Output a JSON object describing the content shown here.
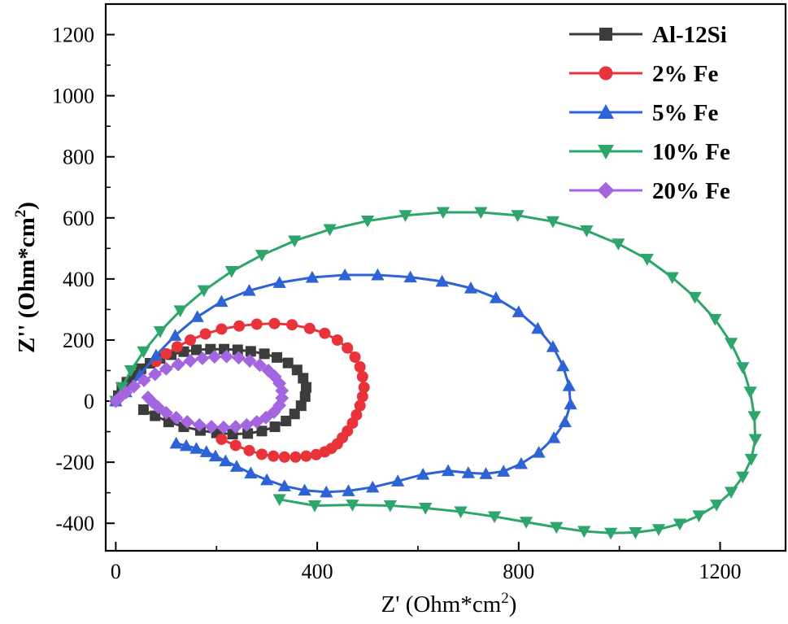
{
  "chart_data": {
    "type": "scatter",
    "title": "",
    "xlabel": "Z' (Ohm*cm",
    "xlabel_sup": "2",
    "xlabel_close": ")",
    "ylabel": "Z'' (Ohm*cm",
    "ylabel_sup": "2",
    "ylabel_close": ")",
    "xlim": [
      -20,
      1330
    ],
    "ylim": [
      -490,
      1300
    ],
    "xticks": [
      0,
      400,
      800,
      1200
    ],
    "yticks": [
      -400,
      -200,
      0,
      200,
      400,
      600,
      800,
      1000,
      1200
    ],
    "legend_position": "top-right",
    "series": [
      {
        "name": "Al-12Si",
        "color": "#3c3c3c",
        "marker": "square",
        "x": [
          0,
          5,
          12,
          22,
          35,
          50,
          68,
          88,
          110,
          135,
          160,
          188,
          215,
          242,
          268,
          295,
          320,
          342,
          360,
          372,
          378,
          376,
          368,
          355,
          338,
          316,
          290,
          262,
          232,
          200,
          168,
          135,
          105,
          78,
          55
        ],
        "y": [
          0,
          18,
          40,
          62,
          85,
          106,
          124,
          140,
          152,
          162,
          168,
          170,
          170,
          168,
          163,
          155,
          143,
          125,
          102,
          75,
          45,
          15,
          -15,
          -42,
          -65,
          -84,
          -98,
          -106,
          -108,
          -104,
          -96,
          -84,
          -68,
          -48,
          -28
        ]
      },
      {
        "name": "2% Fe",
        "color": "#e8333b",
        "marker": "circle",
        "x": [
          80,
          100,
          122,
          148,
          178,
          210,
          245,
          280,
          315,
          350,
          385,
          415,
          440,
          460,
          475,
          485,
          490,
          493,
          490,
          485,
          478,
          470,
          460,
          450,
          440,
          428,
          415,
          398,
          378,
          357,
          335,
          313,
          290,
          265,
          238,
          210
        ],
        "y": [
          130,
          155,
          178,
          200,
          220,
          236,
          246,
          252,
          254,
          250,
          238,
          222,
          200,
          174,
          144,
          112,
          80,
          45,
          15,
          -15,
          -45,
          -72,
          -98,
          -120,
          -140,
          -155,
          -166,
          -175,
          -180,
          -183,
          -183,
          -180,
          -174,
          -162,
          -145,
          -125
        ]
      },
      {
        "name": "5% Fe",
        "color": "#2e63d6",
        "marker": "triangle-up",
        "x": [
          0,
          20,
          48,
          80,
          118,
          162,
          210,
          265,
          325,
          390,
          455,
          520,
          585,
          648,
          705,
          755,
          800,
          838,
          868,
          888,
          900,
          903,
          892,
          870,
          840,
          805,
          770,
          735,
          700,
          660,
          610,
          560,
          510,
          462,
          418,
          375,
          335,
          300,
          268,
          240,
          218,
          198,
          180,
          160,
          140,
          120
        ],
        "y": [
          0,
          30,
          85,
          150,
          215,
          276,
          326,
          362,
          388,
          405,
          413,
          413,
          406,
          392,
          370,
          338,
          292,
          238,
          178,
          115,
          50,
          -10,
          -68,
          -120,
          -168,
          -205,
          -230,
          -238,
          -235,
          -228,
          -240,
          -262,
          -282,
          -294,
          -298,
          -292,
          -278,
          -258,
          -236,
          -214,
          -196,
          -180,
          -166,
          -155,
          -146,
          -138
        ]
      },
      {
        "name": "10% Fe",
        "color": "#2ea66b",
        "marker": "triangle-down",
        "x": [
          0,
          12,
          30,
          55,
          88,
          128,
          175,
          230,
          290,
          355,
          425,
          500,
          575,
          650,
          725,
          798,
          868,
          935,
          998,
          1055,
          1105,
          1150,
          1190,
          1222,
          1245,
          1260,
          1268,
          1270,
          1262,
          1245,
          1222,
          1193,
          1158,
          1120,
          1078,
          1032,
          983,
          930,
          875,
          815,
          752,
          685,
          615,
          545,
          470,
          395,
          325
        ],
        "y": [
          0,
          45,
          100,
          162,
          228,
          296,
          362,
          425,
          478,
          525,
          562,
          590,
          608,
          618,
          618,
          608,
          588,
          558,
          515,
          465,
          405,
          340,
          268,
          190,
          110,
          30,
          -50,
          -125,
          -190,
          -248,
          -298,
          -340,
          -375,
          -402,
          -420,
          -430,
          -432,
          -426,
          -413,
          -396,
          -378,
          -362,
          -350,
          -342,
          -340,
          -342,
          -322
        ]
      },
      {
        "name": "20% Fe",
        "color": "#a366e0",
        "marker": "diamond",
        "x": [
          0,
          8,
          20,
          36,
          56,
          78,
          100,
          124,
          148,
          172,
          196,
          220,
          244,
          266,
          286,
          303,
          316,
          325,
          330,
          330,
          325,
          314,
          298,
          280,
          260,
          238,
          214,
          190,
          166,
          142,
          120,
          100,
          84,
          72,
          64
        ],
        "y": [
          0,
          12,
          28,
          48,
          68,
          88,
          106,
          120,
          132,
          140,
          145,
          146,
          142,
          132,
          118,
          100,
          80,
          58,
          34,
          10,
          -14,
          -36,
          -54,
          -68,
          -78,
          -84,
          -86,
          -84,
          -78,
          -68,
          -54,
          -38,
          -20,
          -2,
          12
        ]
      }
    ]
  }
}
